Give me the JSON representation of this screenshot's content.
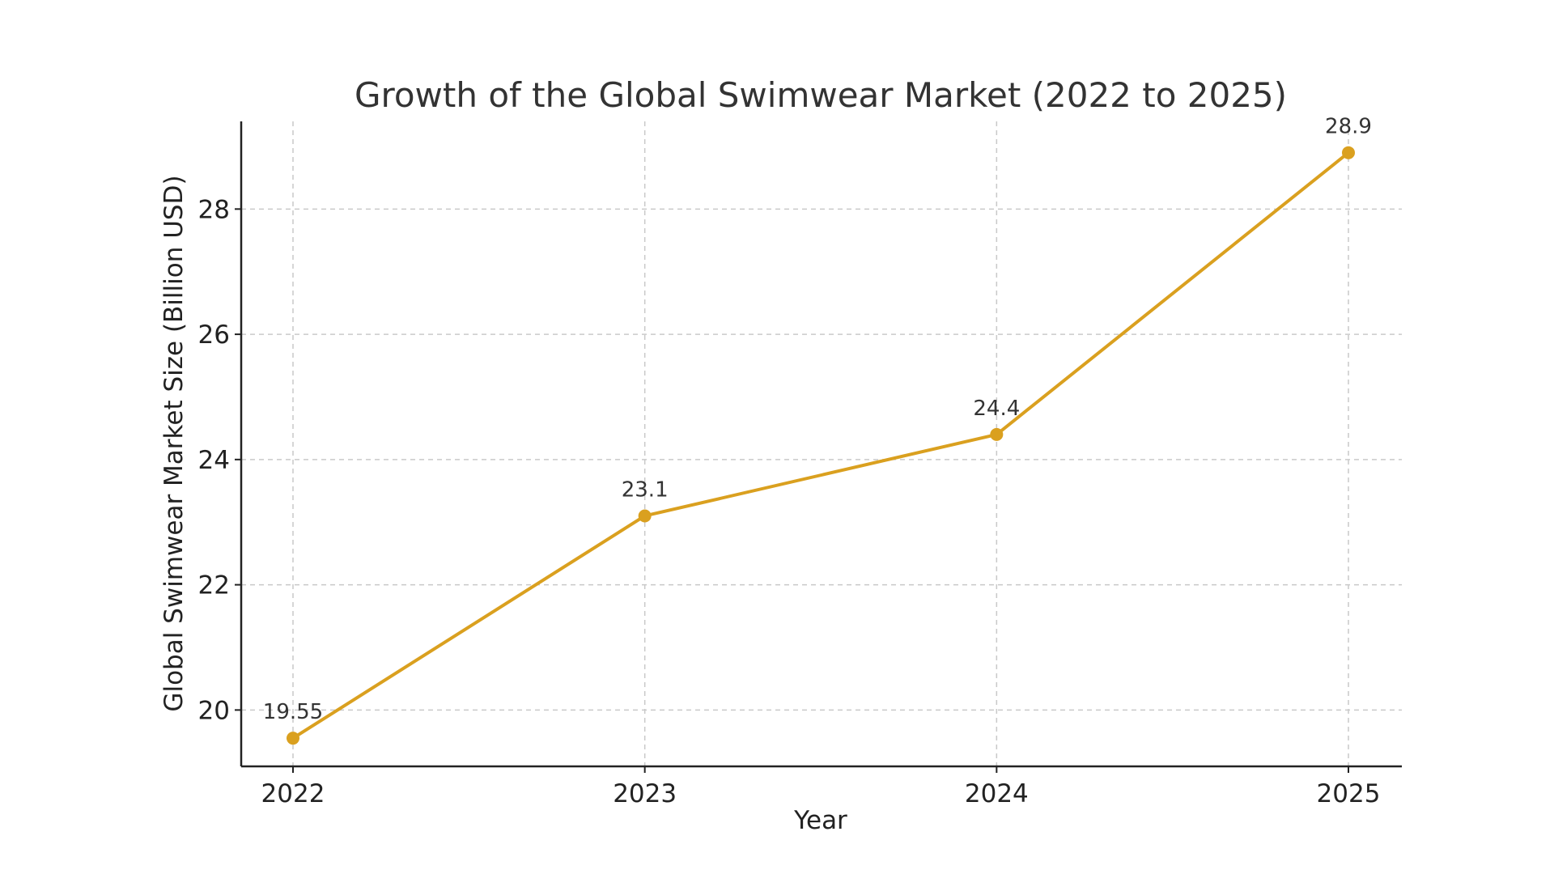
{
  "chart_data": {
    "type": "line",
    "title": "Growth of the Global Swimwear Market (2022 to 2025)",
    "xlabel": "Year",
    "ylabel": "Global Swimwear Market Size (Billion USD)",
    "categories": [
      "2022",
      "2023",
      "2024",
      "2025"
    ],
    "series": [
      {
        "name": "Global Swimwear Market Size",
        "values": [
          19.55,
          23.1,
          24.4,
          28.9
        ],
        "labels": [
          "19.55",
          "23.1",
          "24.4",
          "28.9"
        ],
        "color": "#DAA01F"
      }
    ],
    "ylim": [
      19.1,
      29.4
    ],
    "yticks": [
      20,
      22,
      24,
      26,
      28
    ],
    "ytick_labels": [
      "20",
      "22",
      "24",
      "26",
      "28"
    ],
    "grid": true,
    "legend": "none"
  }
}
